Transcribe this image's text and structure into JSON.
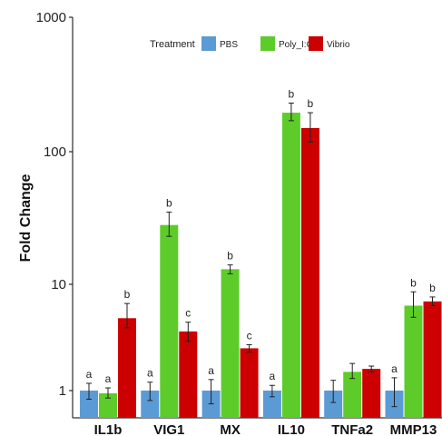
{
  "chart_data": {
    "type": "bar",
    "scale": "log10",
    "ylabel": "Fold Change",
    "ylim": [
      0.6,
      1000
    ],
    "yticks": [
      {
        "value": 1,
        "label": "1"
      },
      {
        "value": 10,
        "label": "10"
      },
      {
        "value": 100,
        "label": "100"
      },
      {
        "value": 1000,
        "label": "1000"
      }
    ],
    "legend": {
      "title": "Treatment",
      "position": "top",
      "entries": [
        "PBS",
        "Poly_I:C",
        "Vibrio"
      ]
    },
    "colors": {
      "PBS": "#5b9bd5",
      "Poly_I:C": "#5dcc2a",
      "Vibrio": "#cc0000"
    },
    "categories": [
      "IL1b",
      "VIG1",
      "MX",
      "IL10",
      "TNFa2",
      "MMP13"
    ],
    "series": [
      {
        "name": "PBS",
        "values": [
          1.0,
          1.0,
          1.0,
          1.0,
          1.0,
          1.0
        ],
        "err_low": [
          0.85,
          0.83,
          0.78,
          0.89,
          0.8,
          0.74
        ],
        "err_high": [
          1.17,
          1.2,
          1.27,
          1.12,
          1.25,
          1.32
        ],
        "labels": [
          "a",
          "a",
          "a",
          "a",
          "",
          "a"
        ]
      },
      {
        "name": "Poly_I:C",
        "values": [
          0.95,
          28,
          13,
          195,
          1.5,
          6.3
        ],
        "err_low": [
          0.87,
          23,
          12,
          170,
          1.3,
          4.9
        ],
        "err_high": [
          1.06,
          35,
          14,
          230,
          1.8,
          8.5
        ],
        "labels": [
          "a",
          "b",
          "b",
          "b",
          "",
          "b"
        ]
      },
      {
        "name": "Vibrio",
        "values": [
          4.8,
          3.6,
          2.5,
          150,
          1.6,
          6.9
        ],
        "err_low": [
          3.9,
          2.9,
          2.3,
          118,
          1.5,
          6.3
        ],
        "err_high": [
          6.6,
          4.4,
          2.7,
          195,
          1.7,
          7.6
        ],
        "labels": [
          "b",
          "c",
          "c",
          "b",
          "",
          "b"
        ]
      }
    ]
  }
}
